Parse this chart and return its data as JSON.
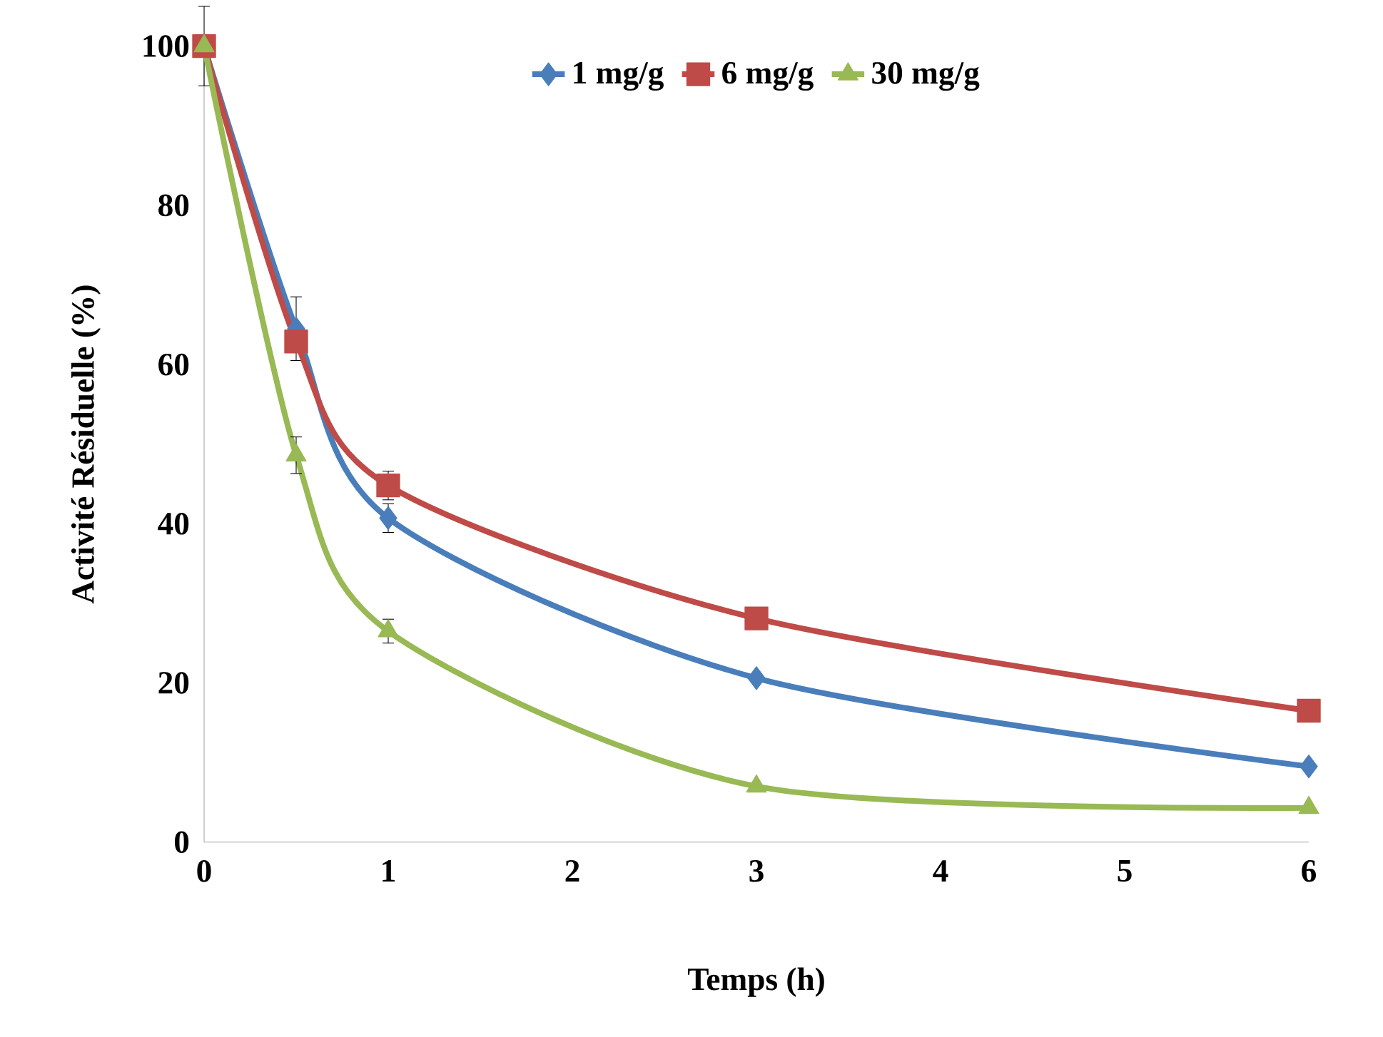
{
  "chart_data": {
    "type": "line",
    "xlabel": "Temps (h)",
    "ylabel": "Activité Résiduelle (%)",
    "x": [
      0,
      0.5,
      1,
      3,
      6
    ],
    "series": [
      {
        "name": "1 mg/g",
        "color": "#4a7ebb",
        "marker": "diamond",
        "values": [
          100,
          64.5,
          40.7,
          20.6,
          9.5
        ],
        "errors": [
          5,
          4,
          1.8,
          null,
          null
        ]
      },
      {
        "name": "6 mg/g",
        "color": "#be4b48",
        "marker": "square",
        "values": [
          100,
          62.9,
          44.8,
          28.1,
          16.5
        ],
        "errors": [
          null,
          null,
          1.8,
          null,
          null
        ]
      },
      {
        "name": "30 mg/g",
        "color": "#98b954",
        "marker": "triangle",
        "values": [
          100,
          48.6,
          26.5,
          7.0,
          4.3
        ],
        "errors": [
          null,
          2.3,
          1.5,
          null,
          null
        ]
      }
    ],
    "xlim": [
      0,
      6
    ],
    "ylim": [
      0,
      100
    ],
    "xticks": [
      0,
      1,
      2,
      3,
      4,
      5,
      6
    ],
    "yticks": [
      0,
      20,
      40,
      60,
      80,
      100
    ],
    "grid": false,
    "legend": "top",
    "line_style": "solid"
  }
}
